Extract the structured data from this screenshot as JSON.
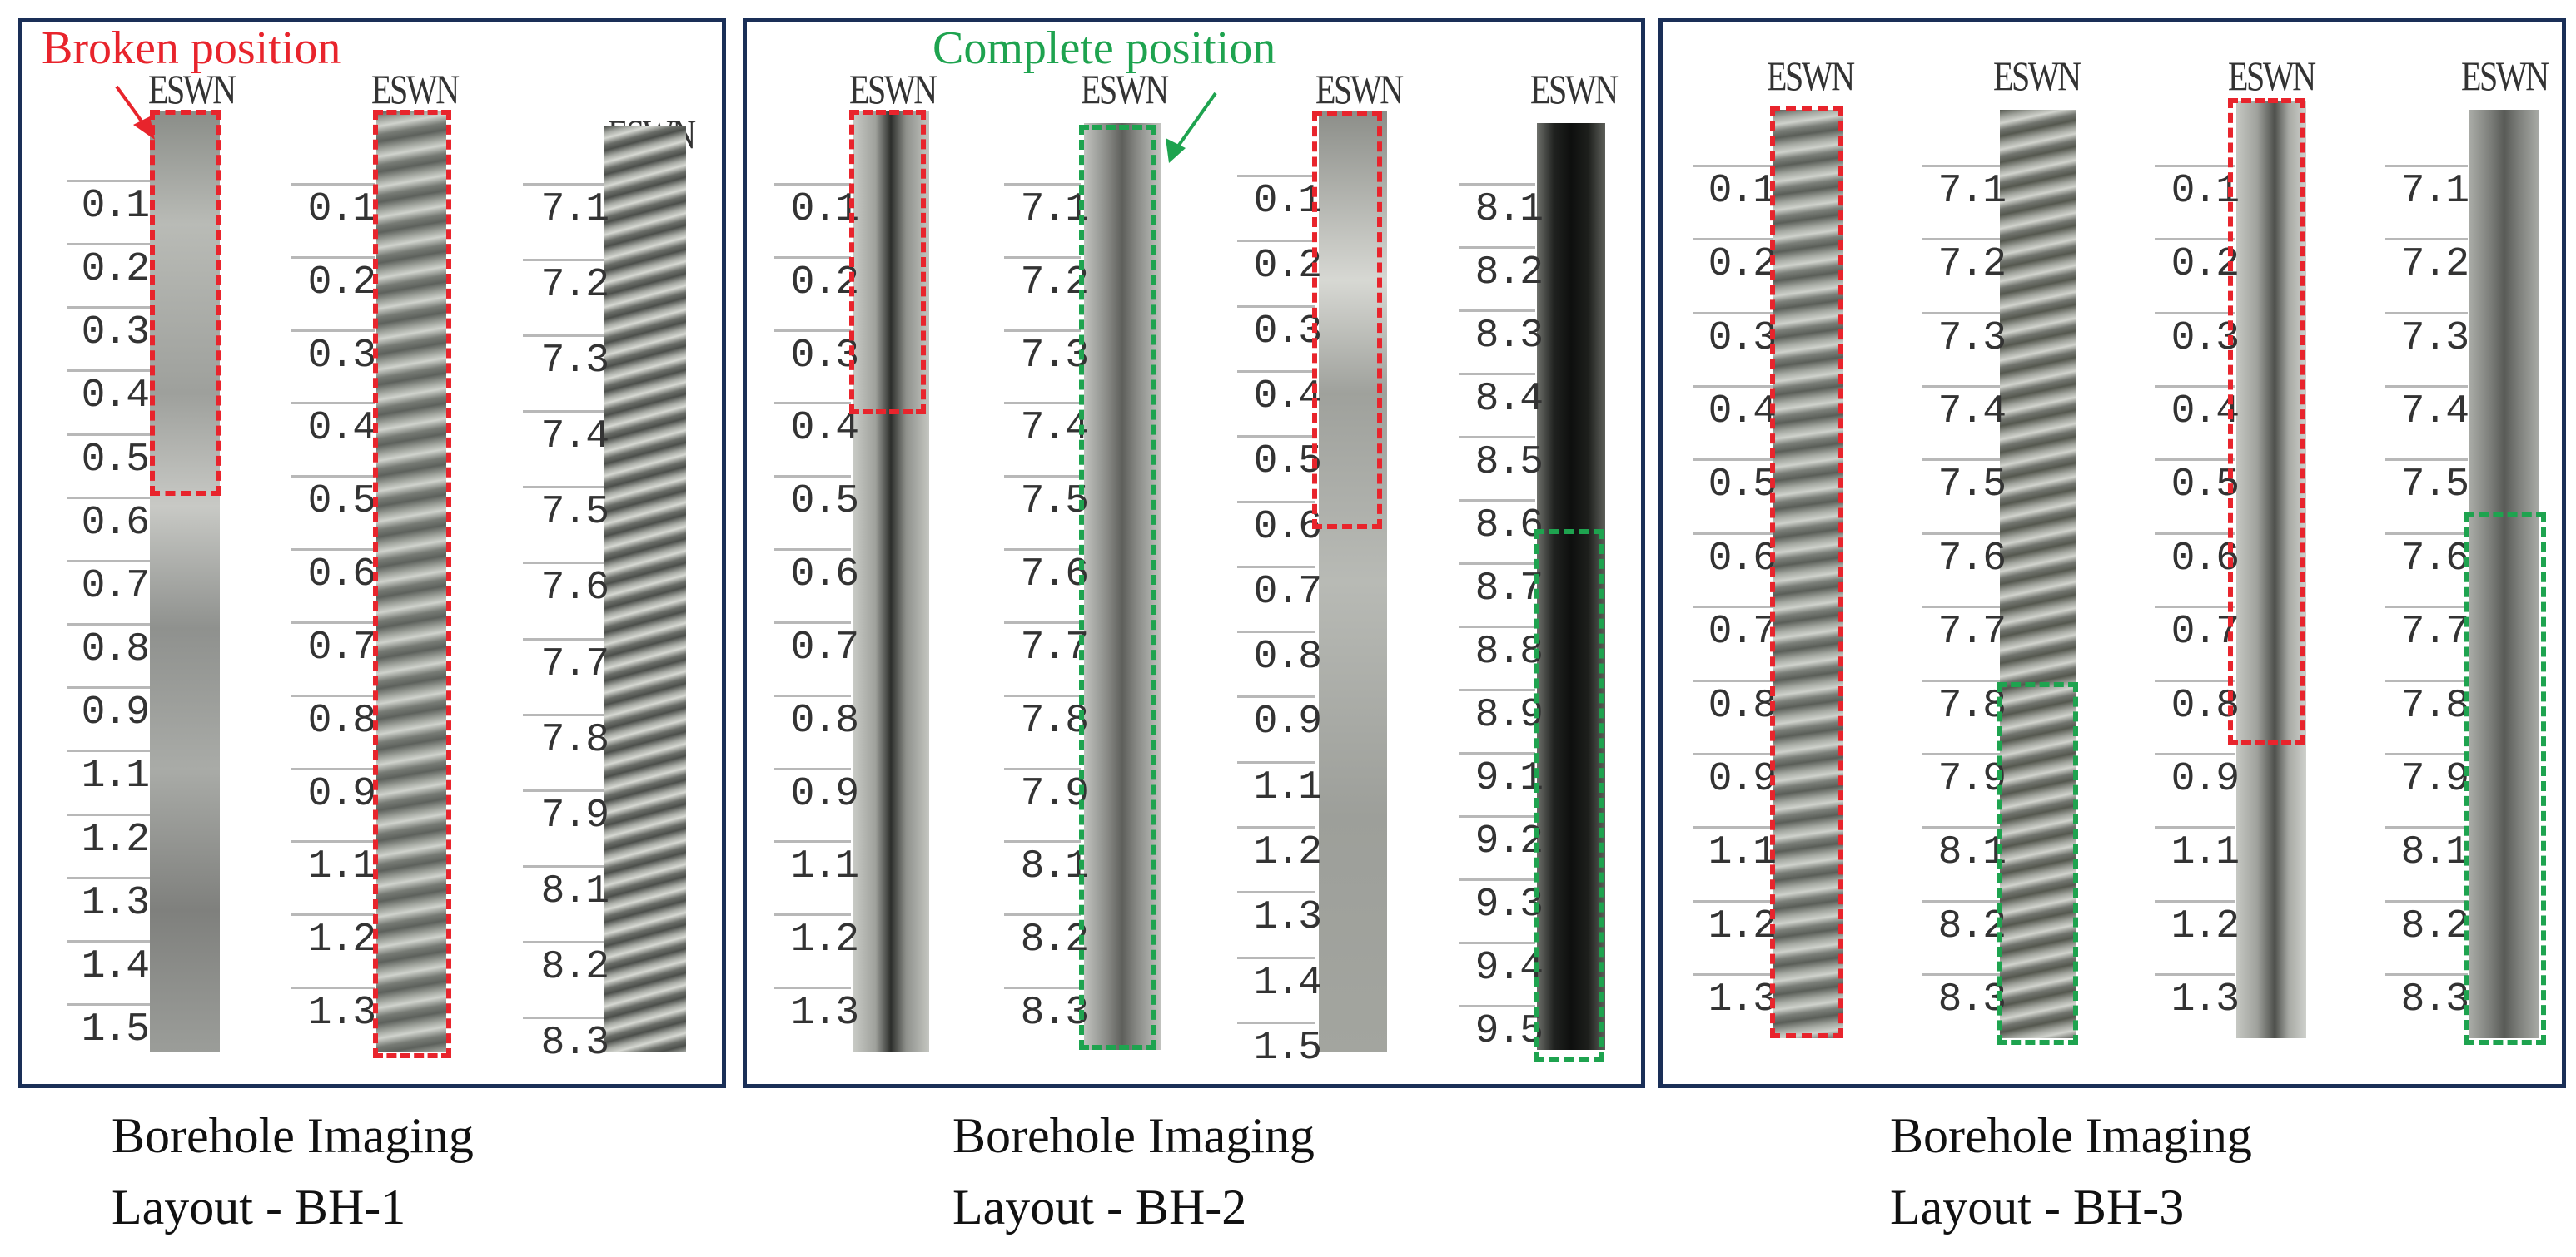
{
  "annotations": {
    "broken": {
      "text": "Broken position",
      "color": "#e8242c"
    },
    "complete": {
      "text": "Complete position",
      "color": "#1ea34f"
    }
  },
  "colors": {
    "frame": "#1a2f57",
    "red": "#e8242c",
    "green": "#1ea34f"
  },
  "panels": [
    {
      "caption_line1": "Borehole Imaging",
      "caption_line2": "Layout - BH-1",
      "columns": [
        {
          "header": "ESWN",
          "labels": [
            "0.1",
            "0.2",
            "0.3",
            "0.4",
            "0.5",
            "0.6",
            "0.7",
            "0.8",
            "0.9",
            "1.1",
            "1.2",
            "1.3",
            "1.4",
            "1.5"
          ]
        },
        {
          "header": "ESWN",
          "labels": [
            "0.1",
            "0.2",
            "0.3",
            "0.4",
            "0.5",
            "0.6",
            "0.7",
            "0.8",
            "0.9",
            "1.1",
            "1.2",
            "1.3"
          ]
        },
        {
          "header": "ESWN",
          "labels": [
            "7.1",
            "7.2",
            "7.3",
            "7.4",
            "7.5",
            "7.6",
            "7.7",
            "7.8",
            "7.9",
            "8.1",
            "8.2",
            "8.3"
          ]
        }
      ]
    },
    {
      "caption_line1": "Borehole Imaging",
      "caption_line2": "Layout - BH-2",
      "columns": [
        {
          "header": "ESWN",
          "labels": [
            "0.1",
            "0.2",
            "0.3",
            "0.4",
            "0.5",
            "0.6",
            "0.7",
            "0.8",
            "0.9",
            "1.1",
            "1.2",
            "1.3"
          ]
        },
        {
          "header": "ESWN",
          "labels": [
            "7.1",
            "7.2",
            "7.3",
            "7.4",
            "7.5",
            "7.6",
            "7.7",
            "7.8",
            "7.9",
            "8.1",
            "8.2",
            "8.3"
          ]
        },
        {
          "header": "ESWN",
          "labels": [
            "0.1",
            "0.2",
            "0.3",
            "0.4",
            "0.5",
            "0.6",
            "0.7",
            "0.8",
            "0.9",
            "1.1",
            "1.2",
            "1.3",
            "1.4",
            "1.5"
          ]
        },
        {
          "header": "ESWN",
          "labels": [
            "8.1",
            "8.2",
            "8.3",
            "8.4",
            "8.5",
            "8.6",
            "8.7",
            "8.8",
            "8.9",
            "9.1",
            "9.2",
            "9.3",
            "9.4",
            "9.5"
          ]
        }
      ]
    },
    {
      "caption_line1": "Borehole Imaging",
      "caption_line2": "Layout - BH-3",
      "columns": [
        {
          "header": "ESWN",
          "labels": [
            "0.1",
            "0.2",
            "0.3",
            "0.4",
            "0.5",
            "0.6",
            "0.7",
            "0.8",
            "0.9",
            "1.1",
            "1.2",
            "1.3"
          ]
        },
        {
          "header": "ESWN",
          "labels": [
            "7.1",
            "7.2",
            "7.3",
            "7.4",
            "7.5",
            "7.6",
            "7.7",
            "7.8",
            "7.9",
            "8.1",
            "8.2",
            "8.3"
          ]
        },
        {
          "header": "ESWN",
          "labels": [
            "0.1",
            "0.2",
            "0.3",
            "0.4",
            "0.5",
            "0.6",
            "0.7",
            "0.8",
            "0.9",
            "1.1",
            "1.2",
            "1.3"
          ]
        },
        {
          "header": "ESWN",
          "labels": [
            "7.1",
            "7.2",
            "7.3",
            "7.4",
            "7.5",
            "7.6",
            "7.7",
            "7.8",
            "7.9",
            "8.1",
            "8.2",
            "8.3"
          ]
        }
      ]
    }
  ]
}
